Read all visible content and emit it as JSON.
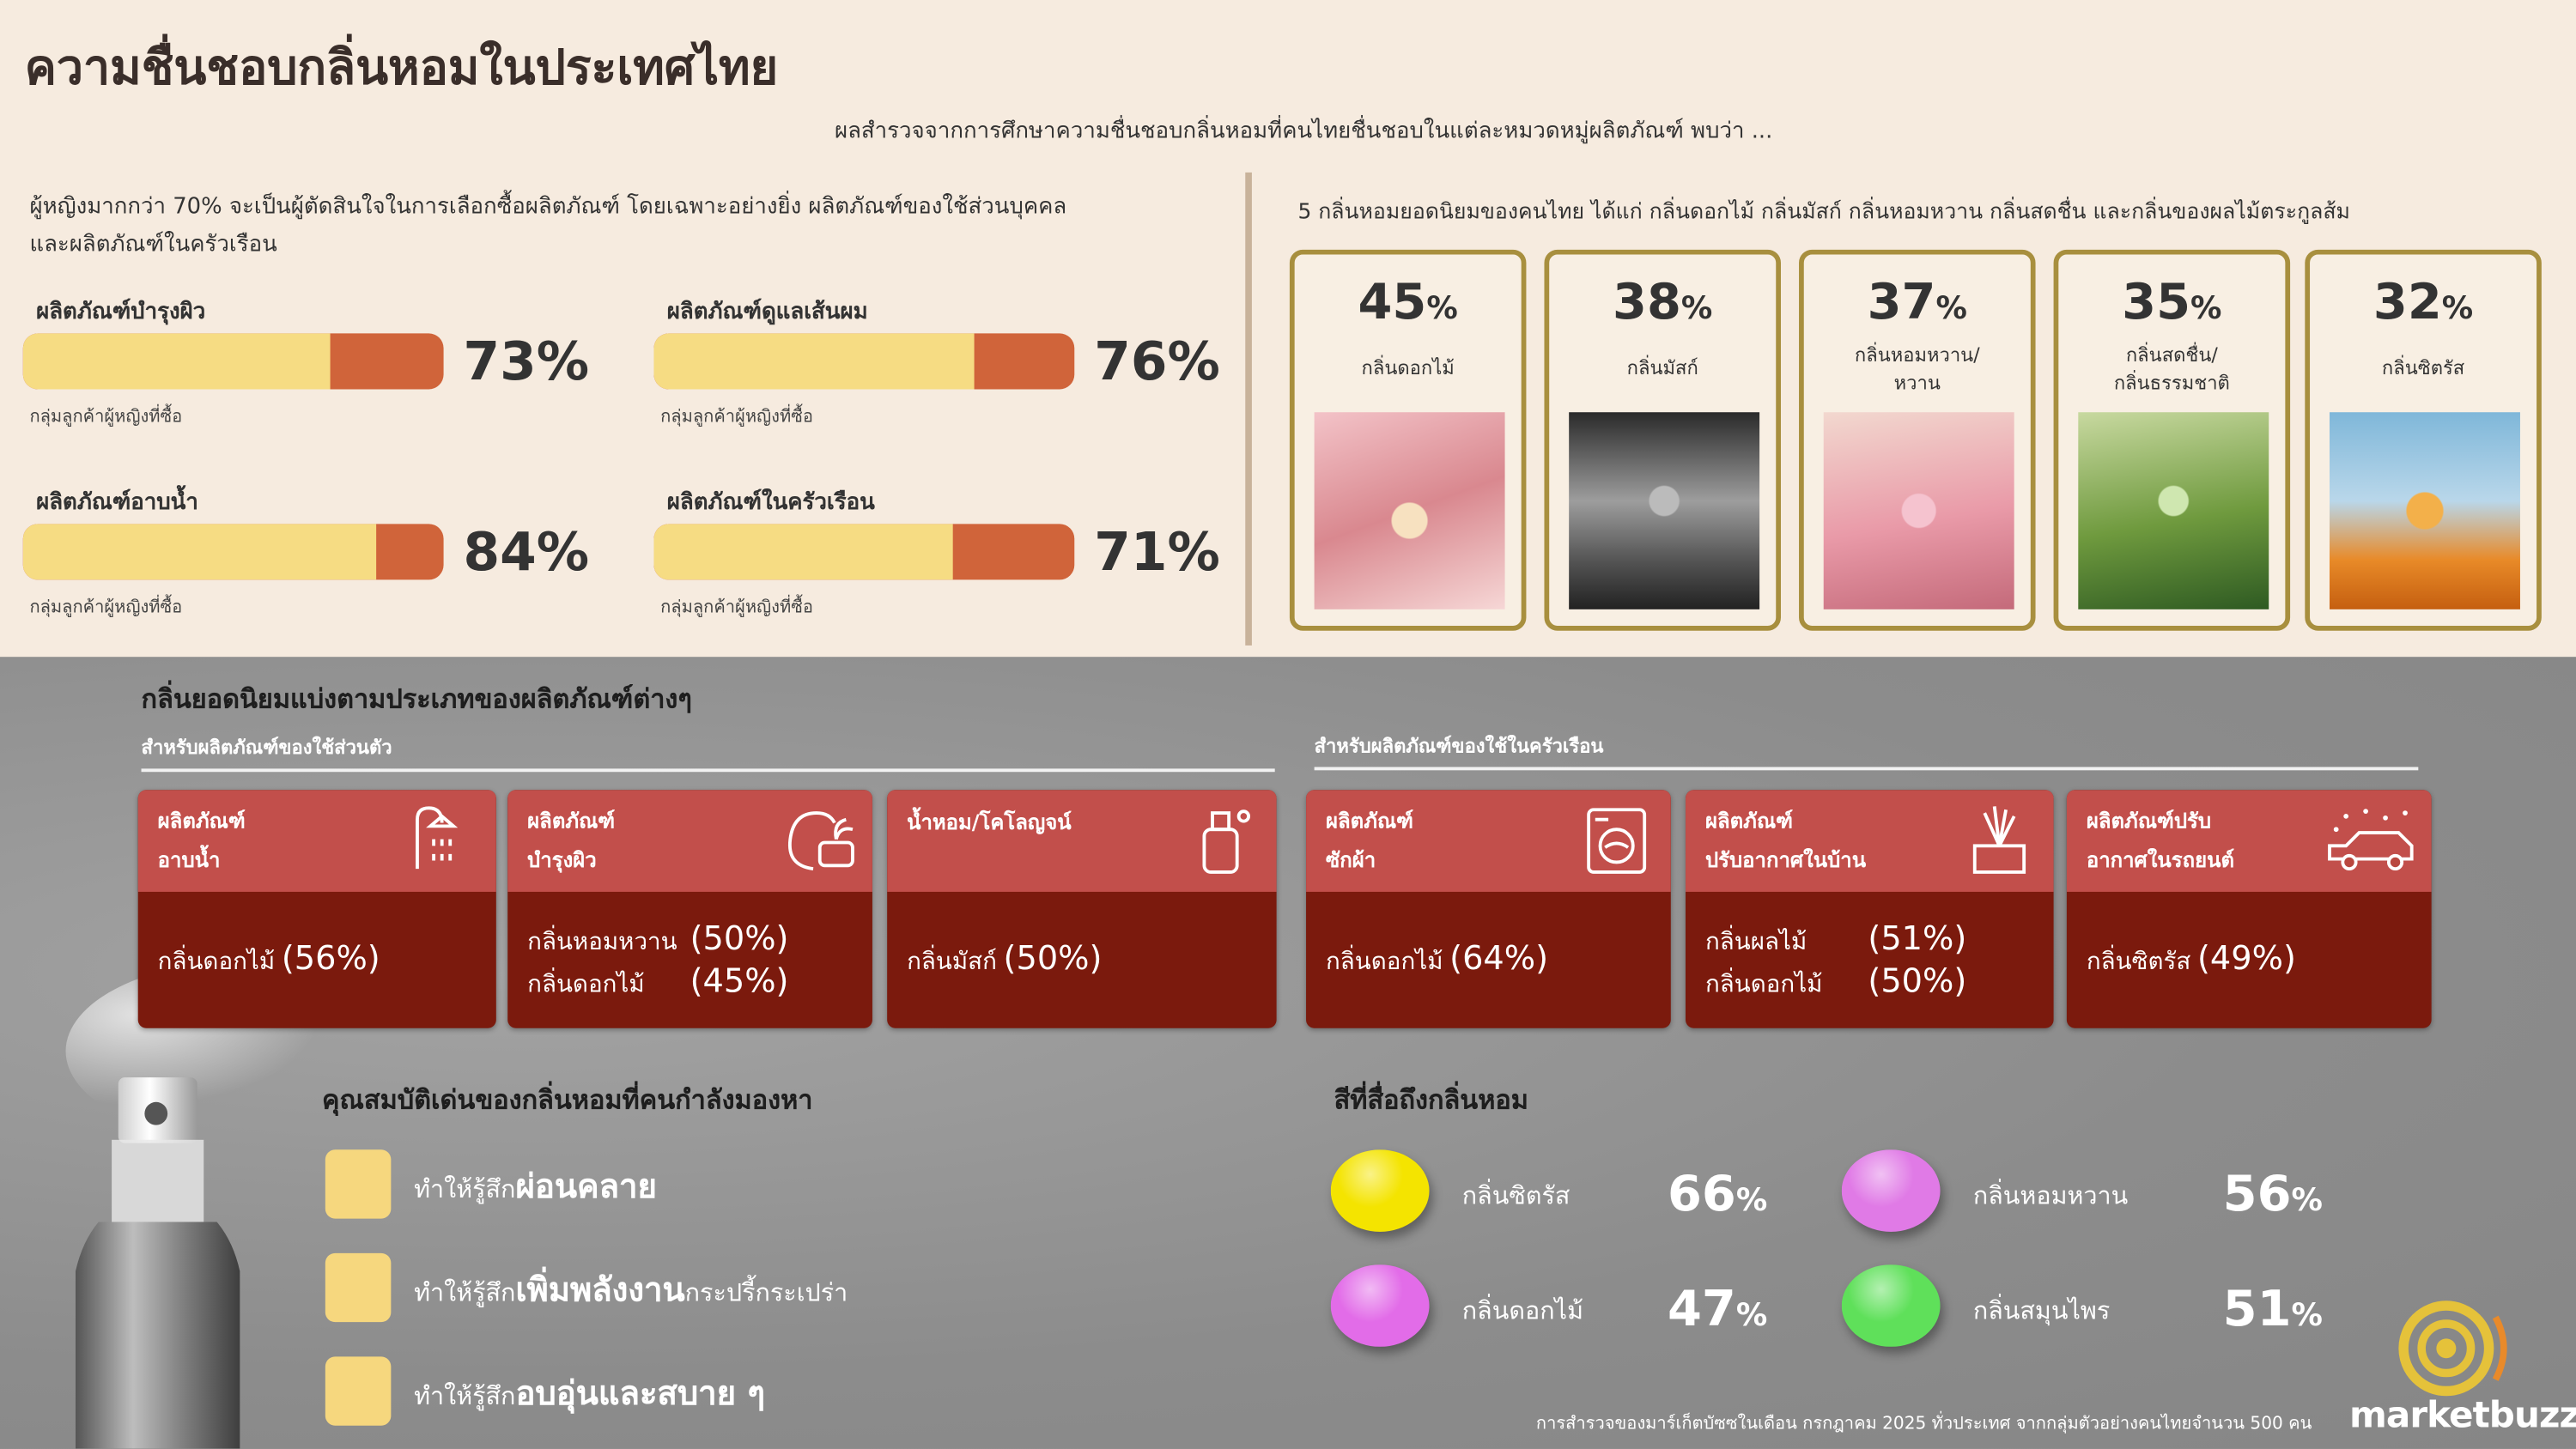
{
  "header": {
    "title": "ความชื่นชอบกลิ่นหอมในประเทศไทย",
    "subtitle": "ผลสำรวจจากการศึกษาความชื่นชอบกลิ่นหอมที่คนไทยชื่นชอบในแต่ละหมวดหมู่ผลิตภัณฑ์ พบว่า ..."
  },
  "women": {
    "intro": "ผู้หญิงมากกว่า 70% จะเป็นผู้ตัดสินใจในการเลือกซื้อผลิตภัณฑ์ โดยเฉพาะอย่างยิ่ง ผลิตภัณฑ์ของใช้ส่วนบุคคลและผลิตภัณฑ์ในครัวเรือน",
    "xlim": [
      0,
      100
    ],
    "items": [
      {
        "label": "ผลิตภัณฑ์บำรุงผิว",
        "value": 73,
        "value_label": "73%",
        "note": "กลุ่มลูกค้าผู้หญิงที่ซื้อ"
      },
      {
        "label": "ผลิตภัณฑ์ดูแลเส้นผม",
        "value": 76,
        "value_label": "76%",
        "note": "กลุ่มลูกค้าผู้หญิงที่ซื้อ"
      },
      {
        "label": "ผลิตภัณฑ์อาบน้ำ",
        "value": 84,
        "value_label": "84%",
        "note": "กลุ่มลูกค้าผู้หญิงที่ซื้อ"
      },
      {
        "label": "ผลิตภัณฑ์ในครัวเรือน",
        "value": 71,
        "value_label": "71%",
        "note": "กลุ่มลูกค้าผู้หญิงที่ซื้อ"
      }
    ]
  },
  "top_scents": {
    "intro": "5 กลิ่นหอมยอดนิยมของคนไทย ได้แก่ กลิ่นดอกไม้ กลิ่นมัสก์ กลิ่นหอมหวาน กลิ่นสดชื่น และกลิ่นของผลไม้ตระกูลส้ม",
    "items": [
      {
        "value": 45,
        "unit": "%",
        "label": [
          "กลิ่นดอกไม้"
        ]
      },
      {
        "value": 38,
        "unit": "%",
        "label": [
          "กลิ่นมัสก์"
        ]
      },
      {
        "value": 37,
        "unit": "%",
        "label": [
          "กลิ่นหอมหวาน/",
          "หวาน"
        ]
      },
      {
        "value": 35,
        "unit": "%",
        "label": [
          "กลิ่นสดชื่น/",
          "กลิ่นธรรมชาติ"
        ]
      },
      {
        "value": 32,
        "unit": "%",
        "label": [
          "กลิ่นซิตรัส"
        ]
      }
    ]
  },
  "categories": {
    "title": "กลิ่นยอดนิยมแบ่งตามประเภทของผลิตภัณฑ์ต่างๆ",
    "groups": [
      "สำหรับผลิตภัณฑ์ของใช้ส่วนตัว",
      "สำหรับผลิตภัณฑ์ของใช้ในครัวเรือน"
    ],
    "cards": [
      {
        "header": [
          "ผลิตภัณฑ์",
          "อาบน้ำ"
        ],
        "results": [
          {
            "scent": "กลิ่นดอกไม้",
            "pct": "(56%)"
          }
        ]
      },
      {
        "header": [
          "ผลิตภัณฑ์",
          "บำรุงผิว"
        ],
        "results": [
          {
            "scent": "กลิ่นหอมหวาน",
            "pct": "(50%)"
          },
          {
            "scent": "กลิ่นดอกไม้",
            "pct": "(45%)"
          }
        ]
      },
      {
        "header": [
          "น้ำหอม/โคโลญจน์"
        ],
        "results": [
          {
            "scent": "กลิ่นมัสก์",
            "pct": "(50%)"
          }
        ]
      },
      {
        "header": [
          "ผลิตภัณฑ์",
          "ซักผ้า"
        ],
        "results": [
          {
            "scent": "กลิ่นดอกไม้",
            "pct": "(64%)"
          }
        ]
      },
      {
        "header": [
          "ผลิตภัณฑ์",
          "ปรับอากาศในบ้าน"
        ],
        "results": [
          {
            "scent": "กลิ่นผลไม้",
            "pct": "(51%)"
          },
          {
            "scent": "กลิ่นดอกไม้",
            "pct": "(50%)"
          }
        ]
      },
      {
        "header": [
          "ผลิตภัณฑ์ปรับ",
          "อากาศในรถยนต์"
        ],
        "results": [
          {
            "scent": "กลิ่นซิตรัส",
            "pct": "(49%)"
          }
        ]
      }
    ]
  },
  "features": {
    "title": "คุณสมบัติเด่นของกลิ่นหอมที่คนกำลังมองหา",
    "items": [
      {
        "prefix": "ทำให้รู้สึก",
        "emphasis": "ผ่อนคลาย"
      },
      {
        "prefix": "ทำให้รู้สึก",
        "emphasis": "เพิ่มพลังงาน",
        "suffix": "กระปรี้กระเปร่า"
      },
      {
        "prefix": "ทำให้รู้สึก",
        "emphasis": "อบอุ่นและสบาย ๆ"
      }
    ]
  },
  "colors": {
    "title": "สีที่สื่อถึงกลิ่นหอม",
    "items": [
      {
        "name": "กลิ่นซิตรัส",
        "value": 66,
        "unit": "%",
        "color": "#f4e400"
      },
      {
        "name": "กลิ่นหอมหวาน",
        "value": 56,
        "unit": "%",
        "color": "#e07ae6"
      },
      {
        "name": "กลิ่นดอกไม้",
        "value": 47,
        "unit": "%",
        "color": "#e26ce8"
      },
      {
        "name": "กลิ่นสมุนไพร",
        "value": 51,
        "unit": "%",
        "color": "#5fe05a"
      }
    ]
  },
  "footer": {
    "note": "การสำรวจของมาร์เก็ตบัซซในเดือน กรกฎาคม 2025 ทั่วประเทศ จากกลุ่มตัวอย่างคนไทยจำนวน 500 คน",
    "logo": "marketbuzzz"
  }
}
